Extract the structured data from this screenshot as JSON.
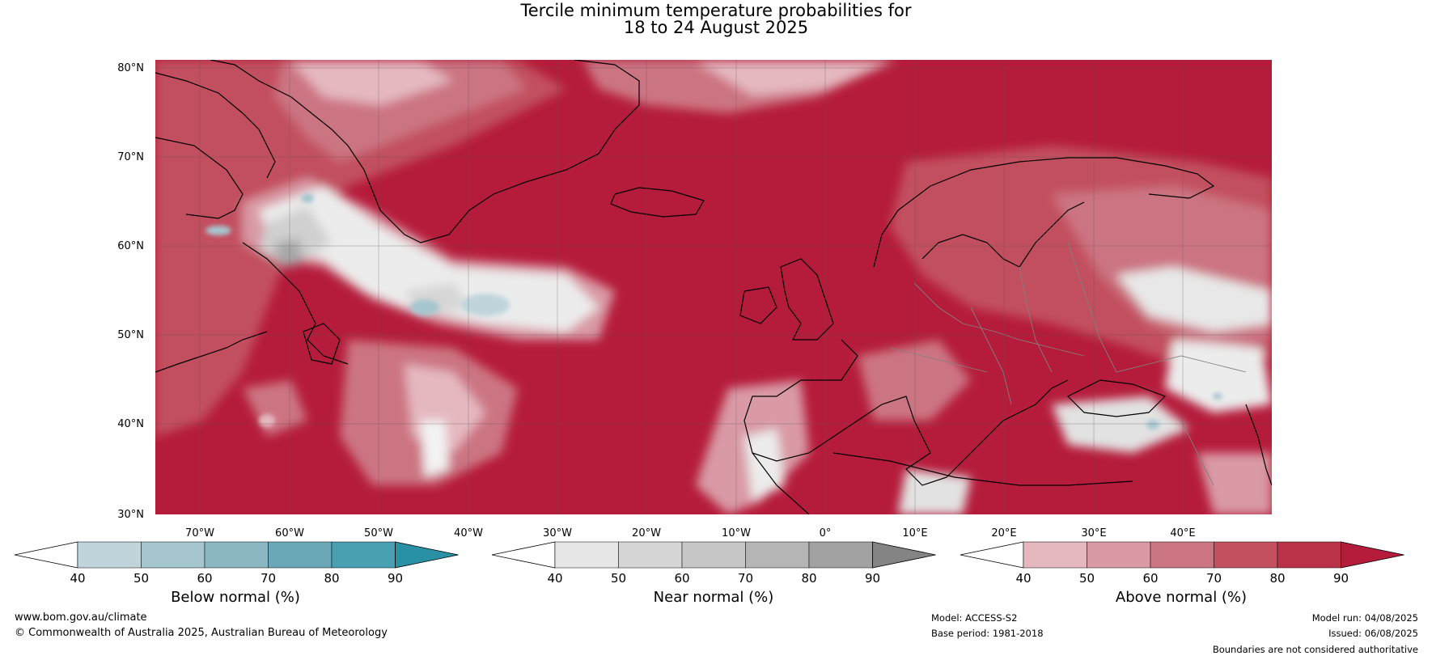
{
  "title": {
    "line1": "Tercile minimum temperature probabilities for",
    "line2": "18 to 24 August 2025"
  },
  "map": {
    "lat_labels": [
      "80°N",
      "70°N",
      "60°N",
      "50°N",
      "40°N",
      "30°N"
    ],
    "lon_labels": [
      "70°W",
      "60°W",
      "50°W",
      "40°W",
      "30°W",
      "20°W",
      "10°W",
      "0°",
      "10°E",
      "20°E",
      "30°E",
      "40°E"
    ]
  },
  "colorbars": [
    {
      "label": "Below normal (%)",
      "ticks": [
        "40",
        "50",
        "60",
        "70",
        "80",
        "90"
      ],
      "colors": [
        "#ffffff",
        "#bfd5db",
        "#a6c6cf",
        "#8bb7c2",
        "#6ba9b8",
        "#48a1b3",
        "#2a90a6"
      ]
    },
    {
      "label": "Near normal (%)",
      "ticks": [
        "40",
        "50",
        "60",
        "70",
        "80",
        "90"
      ],
      "colors": [
        "#ffffff",
        "#e6e6e6",
        "#d6d6d6",
        "#c6c6c6",
        "#b5b5b5",
        "#a2a2a2",
        "#848484"
      ]
    },
    {
      "label": "Above normal (%)",
      "ticks": [
        "40",
        "50",
        "60",
        "70",
        "80",
        "90"
      ],
      "colors": [
        "#ffffff",
        "#e5b8c0",
        "#d99aa5",
        "#cc7582",
        "#c2505f",
        "#b93247",
        "#b51c3b"
      ]
    }
  ],
  "footer": {
    "url": "www.bom.gov.au/climate",
    "copyright": "© Commonwealth of Australia 2025, Australian Bureau of Meteorology",
    "model": "Model: ACCESS-S2",
    "base_period": "Base period: 1981-2018",
    "model_run": "Model run: 04/08/2025",
    "issued": "Issued: 06/08/2025",
    "disclaimer": "Boundaries are not considered authoritative"
  }
}
